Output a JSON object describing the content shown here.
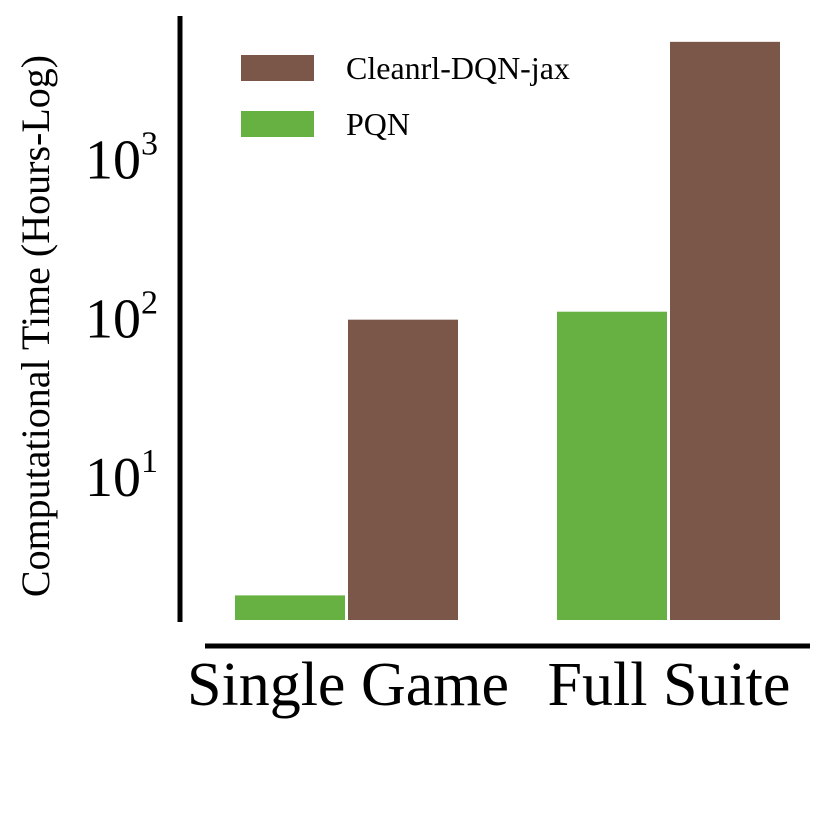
{
  "chart_data": {
    "type": "bar",
    "title": "",
    "xlabel": "",
    "ylabel": "Computational Time (Hours-Log)",
    "yscale": "log",
    "ylim": [
      1.26,
      8000
    ],
    "yticks": [
      10,
      100,
      1000
    ],
    "ytick_base": "10",
    "ytick_exponents": [
      "1",
      "2",
      "3"
    ],
    "categories": [
      "Single Game",
      "Full Suite"
    ],
    "series": [
      {
        "name": "PQN",
        "color": "#67b142",
        "values": [
          1.8,
          110
        ]
      },
      {
        "name": "Cleanrl-DQN-jax",
        "color": "#7a5748",
        "values": [
          98,
          5500
        ]
      }
    ],
    "legend": {
      "placement": "top-left",
      "order": [
        "Cleanrl-DQN-jax",
        "PQN"
      ]
    },
    "grid": false
  }
}
